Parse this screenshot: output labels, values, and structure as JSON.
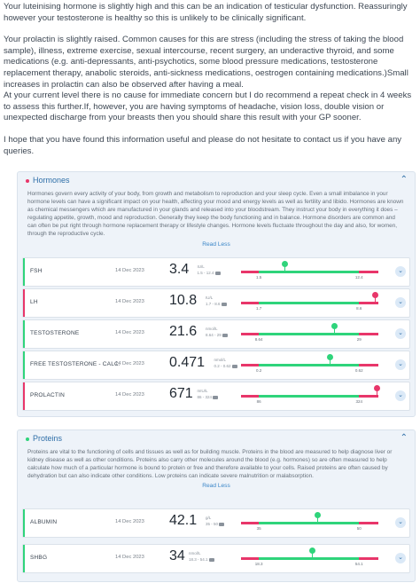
{
  "letter": {
    "p1": "Your luteinising hormone is slightly high and this can be an indication of testicular dysfunction. Reassuringly however your testosterone is healthy so this is unlikely to be clinically significant.",
    "p2": "Your prolactin is slightly raised. Common causes for this are stress (including the stress of taking the blood sample), illness, extreme exercise, sexual intercourse, recent surgery, an underactive thyroid, and some medications (e.g. anti-depressants, anti-psychotics, some blood pressure medications, testosterone replacement therapy, anabolic steroids, anti-sickness medications, oestrogen containing medications.)Small increases in prolactin can also be observed after having a meal.\nAt your current level there is no cause for immediate concern but I do recommend a repeat check in 4 weeks to assess this further.If, however, you are having symptoms of headache, vision loss, double vision or unexpected discharge from your breasts then you should share this result with your GP sooner.",
    "p3": "I hope that you have found this information useful and please do not hesitate to contact us if you have any queries."
  },
  "colors": {
    "red": "#e8366a",
    "green": "#2fd47b",
    "blue": "#2f6fa8",
    "link": "#3a86c8"
  },
  "hormones": {
    "title": "Hormones",
    "icon": "chevron-up-icon",
    "description": "Hormones govern every activity of your body, from growth and metabolism to reproduction and your sleep cycle. Even a small imbalance in your hormone levels can have a significant impact on your health, affecting your mood and energy levels as well as fertility and libido. Hormones are known as chemical messengers which are manufactured in your glands and released into your bloodstream. They instruct your body in everything it does – regulating appetite, growth, mood and reproduction. Generally they keep the body functioning and in balance. Hormone disorders are common and can often be put right through hormone replacement therapy or lifestyle changes. Hormone levels fluctuate throughout the day and also, for women, through the reproductive cycle.",
    "read_less": "Read Less",
    "rows": [
      {
        "name": "FSH",
        "date": "14 Dec 2023",
        "value": "3.4",
        "unit": "IU/L",
        "range": "1.5 - 12.4",
        "low": "1.5",
        "high": "12.4",
        "status": "normal",
        "level": 0.32
      },
      {
        "name": "LH",
        "date": "14 Dec 2023",
        "value": "10.8",
        "unit": "IU/L",
        "range": "1.7 - 8.6",
        "low": "1.7",
        "high": "8.6",
        "status": "high",
        "level": 0.98
      },
      {
        "name": "TESTOSTERONE",
        "date": "14 Dec 2023",
        "value": "21.6",
        "unit": "nmol/L",
        "range": "8.64 - 29",
        "low": "8.64",
        "high": "29",
        "status": "normal",
        "level": 0.68
      },
      {
        "name": "FREE TESTOSTERONE - CALC.",
        "date": "14 Dec 2023",
        "value": "0.471",
        "unit": "nmol/L",
        "range": "0.2 - 0.62",
        "low": "0.2",
        "high": "0.62",
        "status": "normal",
        "level": 0.65
      },
      {
        "name": "PROLACTIN",
        "date": "14 Dec 2023",
        "value": "671",
        "unit": "mIU/L",
        "range": "86 - 324",
        "low": "86",
        "high": "324",
        "status": "high",
        "level": 0.99
      }
    ]
  },
  "proteins": {
    "title": "Proteins",
    "icon": "chevron-up-icon",
    "description": "Proteins are vital to the functioning of cells and tissues as well as for building muscle. Proteins in the blood are measured to help diagnose liver or kidney disease as well as other conditions. Proteins also carry other molecules around the blood (e.g. hormones) so are often measured to help calculate how much of a particular hormone is bound to protein or free and therefore available to your cells. Raised proteins are often caused by dehydration but can also indicate other conditions. Low proteins can indicate severe malnutrition or malabsorption.",
    "read_less": "Read Less",
    "rows": [
      {
        "name": "ALBUMIN",
        "date": "14 Dec 2023",
        "value": "42.1",
        "unit": "g/L",
        "range": "35 - 50",
        "low": "35",
        "high": "50",
        "status": "normal",
        "level": 0.56
      },
      {
        "name": "SHBG",
        "date": "14 Dec 2023",
        "value": "34",
        "unit": "nmol/L",
        "range": "18.3 - 54.1",
        "low": "18.3",
        "high": "54.1",
        "status": "normal",
        "level": 0.52
      }
    ]
  }
}
